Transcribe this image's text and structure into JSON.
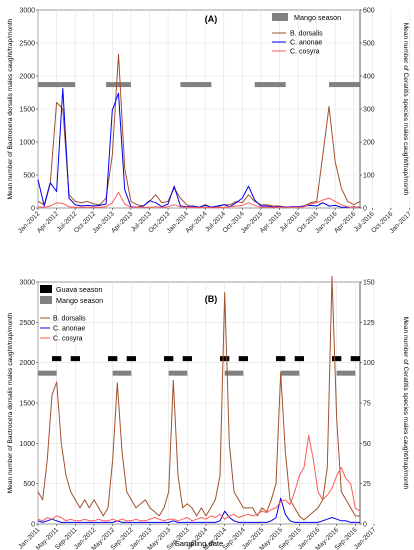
{
  "chart_data": [
    {
      "type": "line",
      "panel_label": "(A)",
      "xlabel": "",
      "ylabel_left": "Mean number of Bactrocera dorsalis males caught/trap/month",
      "ylabel_right": "Mean number of Ceratitis species males caught/trap/month",
      "ylim_left": [
        0,
        3000
      ],
      "ylim_right": [
        0,
        600
      ],
      "yticks_left": [
        "0",
        "500",
        "1000",
        "1500",
        "2000",
        "2500",
        "3000"
      ],
      "yticks_right": [
        "0",
        "100",
        "200",
        "300",
        "400",
        "500",
        "600"
      ],
      "xticks": [
        "Jan-2012",
        "Apr-2012",
        "Jul-2012",
        "Oct-2012",
        "Jan-2013",
        "Apr-2013",
        "Jul-2013",
        "Oct-2013",
        "Jan-2014",
        "Apr-2014",
        "Jul-2014",
        "Oct-2014",
        "Jan-2015",
        "Apr-2015",
        "Jul-2015",
        "Oct-2015",
        "Jan-2016",
        "Apr-2016",
        "Jul-2016",
        "Oct-2016",
        "Jan-2017"
      ],
      "grid": true,
      "legend_position": "top-right",
      "season_legend": [
        {
          "name": "Mango season",
          "color": "#808080"
        }
      ],
      "seasons": [
        {
          "name": "Mango season",
          "level": 1870,
          "start_month": 0,
          "end_month": 6
        },
        {
          "name": "Mango season",
          "level": 1870,
          "start_month": 11,
          "end_month": 15
        },
        {
          "name": "Mango season",
          "level": 1870,
          "start_month": 23,
          "end_month": 28
        },
        {
          "name": "Mango season",
          "level": 1870,
          "start_month": 35,
          "end_month": 40
        },
        {
          "name": "Mango season",
          "level": 1870,
          "start_month": 47,
          "end_month": 52
        }
      ],
      "series": [
        {
          "name": "B. dorsalis",
          "axis": "left",
          "color": "#a0522d",
          "values": [
            100,
            50,
            400,
            1600,
            1500,
            200,
            100,
            80,
            100,
            60,
            50,
            150,
            800,
            2330,
            600,
            100,
            50,
            30,
            100,
            200,
            80,
            100,
            300,
            150,
            50,
            20,
            10,
            50,
            10,
            10,
            50,
            50,
            100,
            80,
            200,
            100,
            50,
            50,
            30,
            30,
            10,
            20,
            20,
            30,
            80,
            100,
            800,
            1540,
            700,
            300,
            100,
            50,
            100
          ]
        },
        {
          "name": "C. anonae",
          "axis": "left",
          "color": "#0000ee",
          "values": [
            430,
            30,
            380,
            250,
            1810,
            150,
            50,
            30,
            40,
            30,
            40,
            60,
            1480,
            1740,
            280,
            20,
            10,
            30,
            110,
            80,
            20,
            60,
            330,
            30,
            20,
            30,
            10,
            40,
            10,
            30,
            50,
            20,
            80,
            150,
            330,
            120,
            30,
            30,
            10,
            20,
            10,
            20,
            20,
            30,
            40,
            30,
            80,
            30,
            40,
            10,
            10,
            20,
            10
          ]
        },
        {
          "name": "C. cosyra",
          "axis": "left",
          "color": "#ff5a5a",
          "values": [
            20,
            10,
            30,
            80,
            70,
            20,
            10,
            10,
            10,
            10,
            10,
            20,
            80,
            240,
            60,
            10,
            10,
            10,
            10,
            20,
            10,
            20,
            50,
            20,
            10,
            10,
            5,
            10,
            5,
            5,
            10,
            20,
            30,
            40,
            80,
            40,
            10,
            10,
            5,
            10,
            5,
            10,
            10,
            20,
            60,
            80,
            120,
            150,
            100,
            50,
            20,
            10,
            20
          ]
        }
      ]
    },
    {
      "type": "line",
      "panel_label": "(B)",
      "xlabel": "Sampling date",
      "ylabel_left": "Mean number of Bactrocera dorsalis males caught/trap/month",
      "ylabel_right": "Mean number of Ceratitis species males caught/trap/month",
      "ylim_left": [
        0,
        3000
      ],
      "ylim_right": [
        0,
        150
      ],
      "yticks_left": [
        "0",
        "500",
        "1000",
        "1500",
        "2000",
        "2500",
        "3000"
      ],
      "yticks_right": [
        "0",
        "25",
        "50",
        "75",
        "100",
        "125",
        "150"
      ],
      "xticks": [
        "Jan-2011",
        "May-2011",
        "Sep-2011",
        "Jan-2012",
        "May-2012",
        "Sep-2012",
        "Jan-2013",
        "May-2013",
        "Sep-2013",
        "Jan-2014",
        "May-2014",
        "Sep-2014",
        "Jan-2015",
        "May-2015",
        "Sep-2015",
        "Jan-2016",
        "May-2016",
        "Sep-2016",
        "Jan-2017"
      ],
      "grid": true,
      "legend_position": "top-left",
      "season_legend": [
        {
          "name": "Guava season",
          "color": "#000000"
        },
        {
          "name": "Mango season",
          "color": "#808080"
        }
      ],
      "seasons": [
        {
          "name": "Mango season",
          "level": 1870,
          "start_month": 0,
          "end_month": 4
        },
        {
          "name": "Mango season",
          "level": 1870,
          "start_month": 16,
          "end_month": 20
        },
        {
          "name": "Mango season",
          "level": 1870,
          "start_month": 28,
          "end_month": 32
        },
        {
          "name": "Mango season",
          "level": 1870,
          "start_month": 40,
          "end_month": 44
        },
        {
          "name": "Mango season",
          "level": 1870,
          "start_month": 52,
          "end_month": 56
        },
        {
          "name": "Mango season",
          "level": 1870,
          "start_month": 64,
          "end_month": 68
        },
        {
          "name": "Guava season",
          "level": 2050,
          "start_month": 3,
          "end_month": 5
        },
        {
          "name": "Guava season",
          "level": 2050,
          "start_month": 7,
          "end_month": 9
        },
        {
          "name": "Guava season",
          "level": 2050,
          "start_month": 15,
          "end_month": 17
        },
        {
          "name": "Guava season",
          "level": 2050,
          "start_month": 19,
          "end_month": 21
        },
        {
          "name": "Guava season",
          "level": 2050,
          "start_month": 27,
          "end_month": 29
        },
        {
          "name": "Guava season",
          "level": 2050,
          "start_month": 31,
          "end_month": 33
        },
        {
          "name": "Guava season",
          "level": 2050,
          "start_month": 39,
          "end_month": 41
        },
        {
          "name": "Guava season",
          "level": 2050,
          "start_month": 43,
          "end_month": 45
        },
        {
          "name": "Guava season",
          "level": 2050,
          "start_month": 51,
          "end_month": 53
        },
        {
          "name": "Guava season",
          "level": 2050,
          "start_month": 55,
          "end_month": 57
        },
        {
          "name": "Guava season",
          "level": 2050,
          "start_month": 63,
          "end_month": 65
        },
        {
          "name": "Guava season",
          "level": 2050,
          "start_month": 67,
          "end_month": 69
        }
      ],
      "series": [
        {
          "name": "B. dorsalis",
          "axis": "left",
          "color": "#a0522d",
          "values": [
            400,
            300,
            800,
            1600,
            1760,
            1000,
            600,
            400,
            300,
            200,
            300,
            200,
            300,
            200,
            100,
            200,
            800,
            1750,
            900,
            400,
            300,
            200,
            250,
            300,
            200,
            150,
            100,
            200,
            400,
            1780,
            600,
            200,
            250,
            200,
            100,
            200,
            100,
            200,
            300,
            600,
            2870,
            1000,
            400,
            300,
            200,
            200,
            200,
            100,
            200,
            150,
            300,
            500,
            1880,
            900,
            300,
            200,
            100,
            50,
            100,
            150,
            200,
            300,
            700,
            3070,
            1300,
            400,
            300,
            200,
            100,
            100
          ]
        },
        {
          "name": "C. anonae",
          "axis": "right",
          "color": "#0000ee",
          "values": [
            2,
            1,
            2,
            3,
            2,
            1,
            1,
            1,
            1,
            1,
            1,
            1,
            1,
            1,
            1,
            1,
            1,
            2,
            1,
            1,
            1,
            1,
            1,
            1,
            1,
            1,
            1,
            1,
            1,
            2,
            1,
            1,
            1,
            1,
            1,
            1,
            1,
            1,
            1,
            2,
            8,
            4,
            2,
            1,
            1,
            1,
            1,
            1,
            1,
            1,
            2,
            4,
            16,
            6,
            2,
            1,
            1,
            1,
            1,
            1,
            1,
            2,
            3,
            4,
            3,
            2,
            2,
            1,
            1,
            1
          ]
        },
        {
          "name": "C. cosyra",
          "axis": "right",
          "color": "#ff5a5a",
          "values": [
            3,
            2,
            4,
            3,
            5,
            4,
            2,
            3,
            2,
            2,
            3,
            2,
            2,
            3,
            2,
            2,
            3,
            2,
            3,
            2,
            2,
            3,
            2,
            2,
            3,
            4,
            3,
            2,
            3,
            3,
            2,
            3,
            4,
            2,
            3,
            4,
            3,
            5,
            4,
            6,
            3,
            5,
            6,
            4,
            5,
            6,
            5,
            6,
            8,
            7,
            9,
            10,
            14,
            15,
            12,
            20,
            30,
            35,
            55,
            40,
            20,
            15,
            18,
            22,
            30,
            35,
            28,
            25,
            10,
            8
          ]
        }
      ]
    }
  ]
}
